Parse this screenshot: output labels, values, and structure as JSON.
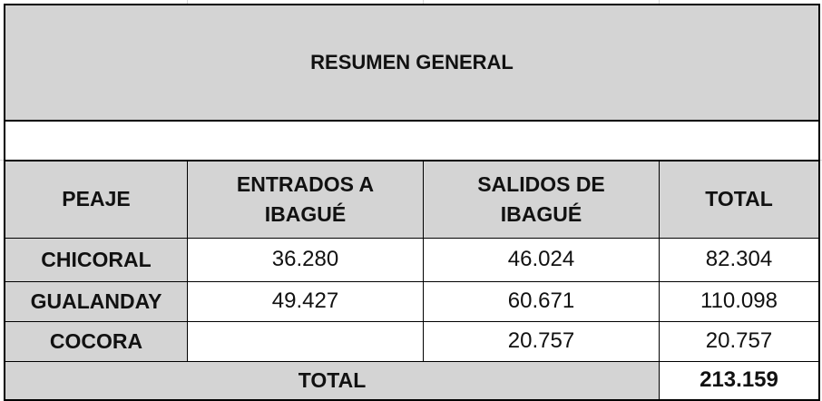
{
  "sheet": {
    "title": "RESUMEN GENERAL",
    "headers": {
      "peaje": "PEAJE",
      "entrados": "ENTRADOS A IBAGUÉ",
      "salidos": "SALIDOS DE IBAGUÉ",
      "total": "TOTAL"
    },
    "rows": [
      {
        "peaje": "CHICORAL",
        "entrados": "36.280",
        "salidos": "46.024",
        "total": "82.304"
      },
      {
        "peaje": "GUALANDAY",
        "entrados": "49.427",
        "salidos": "60.671",
        "total": "110.098"
      },
      {
        "peaje": "COCORA",
        "entrados": "",
        "salidos": "20.757",
        "total": "20.757"
      }
    ],
    "total_label": "TOTAL",
    "grand_total": "213.159"
  },
  "colors": {
    "header_fill": "#d4d4d4",
    "border": "#000000",
    "gridline": "#d6d6d6"
  }
}
